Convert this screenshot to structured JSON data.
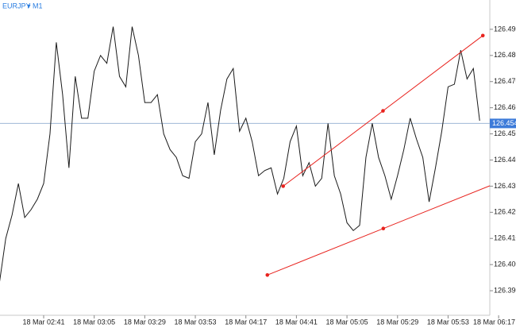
{
  "chart_data": {
    "type": "line",
    "symbol": "EURJPY",
    "timeframe": "M1",
    "color": "#1a1a1a",
    "categories": [
      null,
      null,
      null,
      null,
      null,
      null,
      null,
      "18 Mar 02:41",
      null,
      null,
      null,
      null,
      null,
      null,
      null,
      "18 Mar 03:05",
      null,
      null,
      null,
      null,
      null,
      null,
      null,
      "18 Mar 03:29",
      null,
      null,
      null,
      null,
      null,
      null,
      null,
      "18 Mar 03:53",
      null,
      null,
      null,
      null,
      null,
      null,
      null,
      "18 Mar 04:17",
      null,
      null,
      null,
      null,
      null,
      null,
      null,
      "18 Mar 04:41",
      null,
      null,
      null,
      null,
      null,
      null,
      null,
      "18 Mar 05:05",
      null,
      null,
      null,
      null,
      null,
      null,
      null,
      "18 Mar 05:29",
      null,
      null,
      null,
      null,
      null,
      null,
      null,
      "18 Mar 05:53",
      null,
      null,
      null,
      null,
      null,
      null,
      null,
      "18 Mar 06:17"
    ],
    "values": [
      126.393,
      126.41,
      126.419,
      126.431,
      126.418,
      126.421,
      126.425,
      126.431,
      126.45,
      126.485,
      126.465,
      126.437,
      126.472,
      126.456,
      126.456,
      126.474,
      126.48,
      126.477,
      126.491,
      126.472,
      126.468,
      126.491,
      126.48,
      126.462,
      126.462,
      126.465,
      126.45,
      126.444,
      126.441,
      126.434,
      126.433,
      126.447,
      126.45,
      126.462,
      126.442,
      126.459,
      126.471,
      126.475,
      126.451,
      126.456,
      126.447,
      126.434,
      126.436,
      126.437,
      126.427,
      126.433,
      126.447,
      126.453,
      126.434,
      126.439,
      126.43,
      126.433,
      126.454,
      126.434,
      126.427,
      126.416,
      126.413,
      126.415,
      126.441,
      126.454,
      126.441,
      126.434,
      126.425,
      126.434,
      126.444,
      126.456,
      126.448,
      126.441,
      126.424,
      126.437,
      126.451,
      126.468,
      126.469,
      126.482,
      126.471,
      126.475,
      126.455,
      null,
      null,
      null
    ],
    "ylim": [
      126.3806,
      126.5003
    ],
    "yticks": [
      {
        "value": 126.39,
        "label": "126.390"
      },
      {
        "value": 126.4,
        "label": "126.400"
      },
      {
        "value": 126.41,
        "label": "126.410"
      },
      {
        "value": 126.42,
        "label": "126.420"
      },
      {
        "value": 126.43,
        "label": "126.430"
      },
      {
        "value": 126.44,
        "label": "126.440"
      },
      {
        "value": 126.45,
        "label": "126.450"
      },
      {
        "value": 126.46,
        "label": "126.460"
      },
      {
        "value": 126.47,
        "label": "126.470"
      },
      {
        "value": 126.48,
        "label": "126.480"
      },
      {
        "value": 126.49,
        "label": "126.490"
      }
    ],
    "current_price": 126.454,
    "current_price_color": "#3d7bd9",
    "trendlines": [
      {
        "color": "#e8231e",
        "points": [
          [
            44.9,
            126.43
          ],
          [
            76.5,
            126.4876
          ]
        ]
      },
      {
        "color": "#e8231e",
        "points": [
          [
            42.4,
            126.396
          ],
          [
            79.1,
            126.4316
          ]
        ]
      }
    ]
  }
}
